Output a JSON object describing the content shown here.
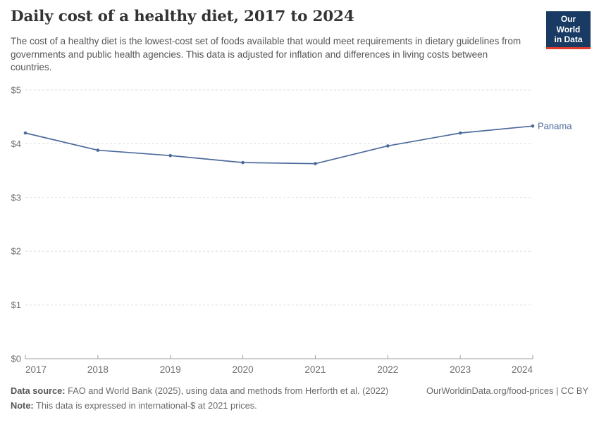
{
  "header": {
    "title": "Daily cost of a healthy diet, 2017 to 2024",
    "subtitle": "The cost of a healthy diet is the lowest-cost set of foods available that would meet requirements in dietary guidelines from governments and public health agencies. This data is adjusted for inflation and differences in living costs between countries."
  },
  "logo": {
    "line1": "Our World",
    "line2": "in Data",
    "bg_color": "#183a63",
    "accent_color": "#e23a2e"
  },
  "chart_data": {
    "type": "line",
    "title": "Daily cost of a healthy diet, 2017 to 2024",
    "x": [
      2017,
      2018,
      2019,
      2020,
      2021,
      2022,
      2023,
      2024
    ],
    "xtick_labels": [
      "2017",
      "2018",
      "2019",
      "2020",
      "2021",
      "2022",
      "2023",
      "2024"
    ],
    "series": [
      {
        "name": "Panama",
        "values": [
          4.2,
          3.88,
          3.78,
          3.65,
          3.63,
          3.96,
          4.2,
          4.33
        ],
        "color": "#4c6a9c"
      }
    ],
    "xlabel": "",
    "ylabel": "",
    "ylim": [
      0,
      5
    ],
    "yticks": [
      0,
      1,
      2,
      3,
      4,
      5
    ],
    "ytick_labels": [
      "$0",
      "$1",
      "$2",
      "$3",
      "$4",
      "$5"
    ],
    "grid": "horizontal-dashed",
    "legend_position": "end-of-line-label",
    "unit": "international-$ per day"
  },
  "colors": {
    "grid": "#dcdcdc",
    "axis": "#9e9e9e",
    "tick_label": "#6e6e6e"
  },
  "footer": {
    "data_source_label": "Data source:",
    "data_source_text": " FAO and World Bank (2025), using data and methods from Herforth et al. (2022)",
    "note_label": "Note:",
    "note_text": " This data is expressed in international-$ at 2021 prices.",
    "attribution": "OurWorldinData.org/food-prices | CC BY"
  }
}
